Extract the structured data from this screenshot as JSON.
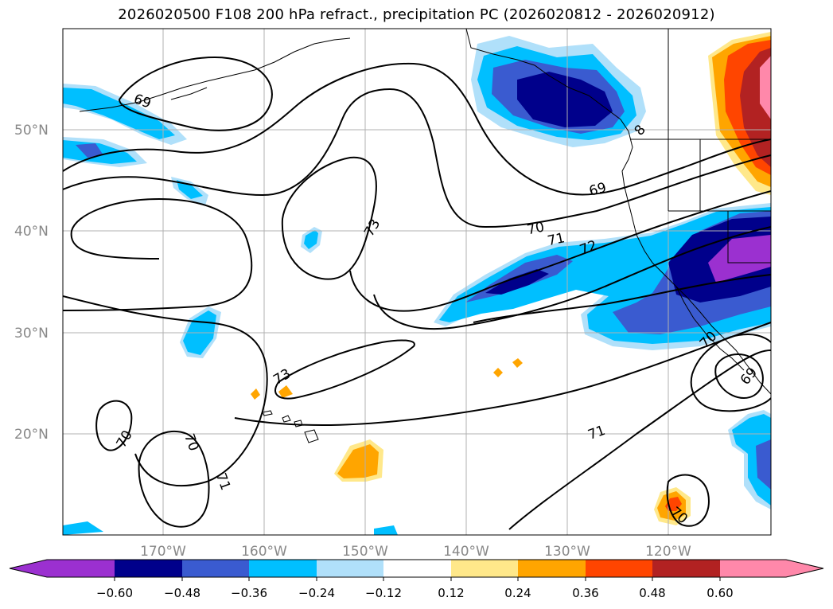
{
  "title": "2026020500 F108 200 hPa refract., precipitation PC (2026020812 - 2026020912)",
  "lat_labels": [
    "50°N",
    "40°N",
    "30°N",
    "20°N"
  ],
  "lon_labels": [
    "170°W",
    "160°W",
    "150°W",
    "140°W",
    "130°W",
    "120°W"
  ],
  "contour_labels": [
    "69",
    "73",
    "70",
    "71",
    "72",
    "69",
    "73",
    "70",
    "70",
    "71",
    "71",
    "70",
    "70",
    "69",
    "8"
  ],
  "colorbar": {
    "ticks": [
      "−0.60",
      "−0.48",
      "−0.36",
      "−0.24",
      "−0.12",
      "0.12",
      "0.24",
      "0.36",
      "0.48",
      "0.60"
    ],
    "colors": [
      "#9b30d0",
      "#00008b",
      "#3a5bd0",
      "#00bfff",
      "#b0e0fa",
      "#ffffff",
      "#ffe88a",
      "#ffa500",
      "#ff4500",
      "#b22222",
      "#ff88aa",
      "#ff88aa"
    ]
  },
  "colors": {
    "grid": "#b0b0b0",
    "axis_label": "#888888"
  }
}
